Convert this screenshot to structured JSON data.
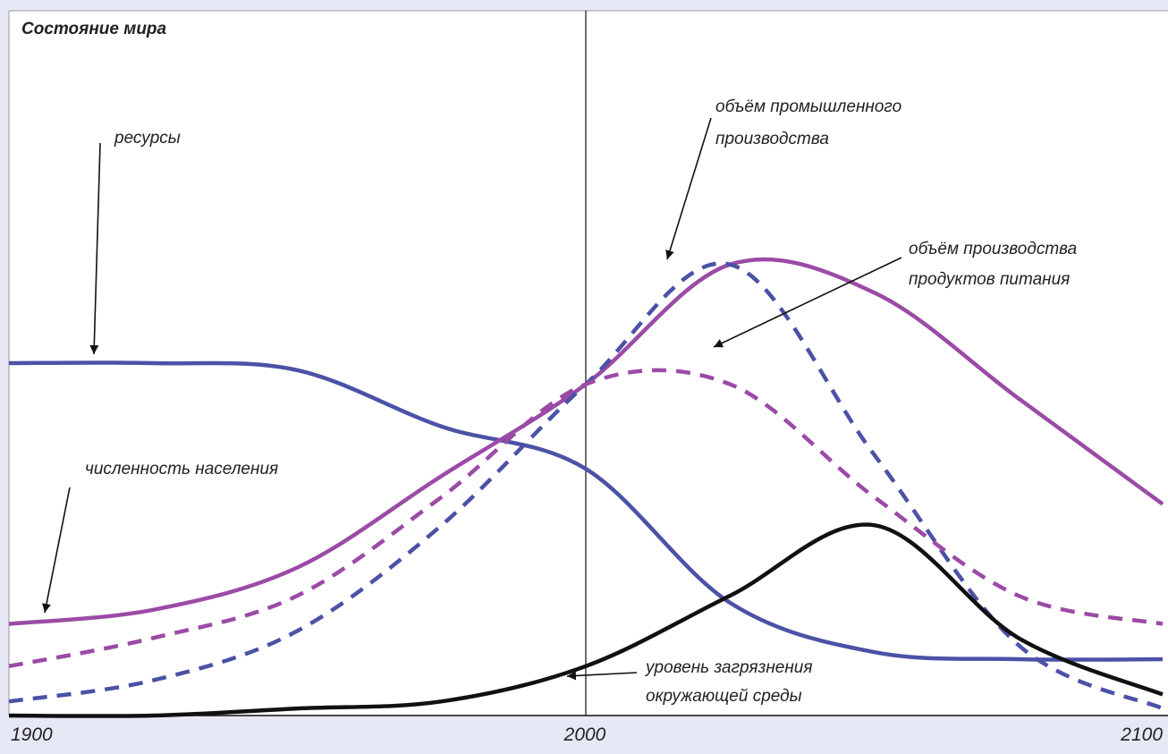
{
  "chart_data": {
    "type": "line",
    "title": "Состояние мира",
    "xlabel": "",
    "ylabel": "",
    "x": [
      1900,
      1925,
      1950,
      1975,
      2000,
      2025,
      2050,
      2075,
      2100
    ],
    "xlim": [
      1900,
      2100
    ],
    "ylim": [
      0,
      1
    ],
    "x_ticks": [
      "1900",
      "2000",
      "2100"
    ],
    "marker_line_x": 2000,
    "grid": false,
    "legend": "none",
    "series": [
      {
        "name": "ресурсы",
        "style": "solid",
        "color": "#4b52a6",
        "values": [
          0.5,
          0.5,
          0.49,
          0.41,
          0.35,
          0.16,
          0.09,
          0.08,
          0.08
        ]
      },
      {
        "name": "численность населения",
        "style": "solid",
        "color": "#9b4ba6",
        "values": [
          0.13,
          0.15,
          0.21,
          0.34,
          0.47,
          0.64,
          0.6,
          0.45,
          0.3
        ]
      },
      {
        "name": "объём промышленного производства",
        "style": "dashed",
        "color": "#4b52a6",
        "values": [
          0.02,
          0.05,
          0.12,
          0.27,
          0.47,
          0.64,
          0.37,
          0.1,
          0.01
        ]
      },
      {
        "name": "объём производства продуктов питания",
        "style": "dashed",
        "color": "#9b4ba6",
        "values": [
          0.07,
          0.11,
          0.17,
          0.31,
          0.47,
          0.47,
          0.31,
          0.17,
          0.13
        ]
      },
      {
        "name": "уровень загрязнения окружающей среды",
        "style": "solid",
        "color": "#111111",
        "values": [
          0.0,
          0.0,
          0.01,
          0.02,
          0.07,
          0.17,
          0.27,
          0.11,
          0.03
        ]
      }
    ],
    "annotations": {
      "resources": "ресурсы",
      "population": "численность населения",
      "industry_line1": "объём промышленного",
      "industry_line2": "производства",
      "food_line1": "объём производства",
      "food_line2": "продуктов питания",
      "pollution_line1": "уровень загрязнения",
      "pollution_line2": "окружающей среды"
    }
  }
}
